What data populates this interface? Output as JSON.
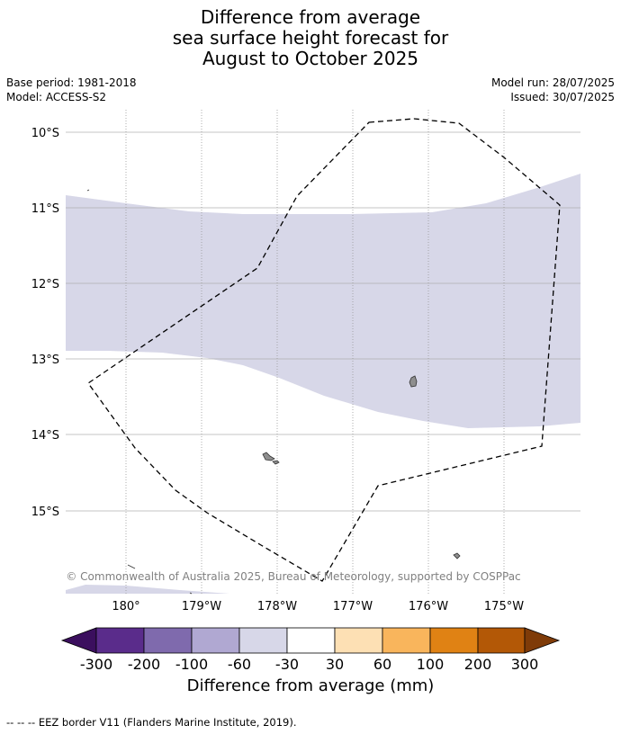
{
  "title": {
    "line1": "Difference from average",
    "line2": "sea surface height forecast for",
    "line3": "August to October 2025"
  },
  "meta": {
    "base_period": "Base period: 1981-2018",
    "model": "Model: ACCESS-S2",
    "model_run": "Model run: 28/07/2025",
    "issued": "Issued: 30/07/2025"
  },
  "map": {
    "lat_labels": [
      "10°S",
      "11°S",
      "12°S",
      "13°S",
      "14°S",
      "15°S"
    ],
    "lon_labels": [
      "180°",
      "179°W",
      "178°W",
      "177°W",
      "176°W",
      "175°W"
    ],
    "attribution": "© Commonwealth of Australia 2025, Bureau of Meteorology, supported by COSPPac",
    "colors": {
      "shade_-60_-30": "#d7d7e8",
      "gridline": "#b0b0b0",
      "land": "#9a9a9a"
    }
  },
  "colorbar": {
    "label": "Difference from average (mm)",
    "ticks": [
      "-300",
      "-200",
      "-100",
      "-60",
      "-30",
      "30",
      "60",
      "100",
      "200",
      "300"
    ],
    "colors": [
      "#3b0f5e",
      "#5a2c8b",
      "#7f6aad",
      "#b0a8d2",
      "#d7d7e8",
      "#ffffff",
      "#fde0b4",
      "#f9b55c",
      "#e08214",
      "#b35806",
      "#7f3b08"
    ]
  },
  "footnote": "--  --  -- EEZ border V11 (Flanders Marine Institute, 2019)."
}
